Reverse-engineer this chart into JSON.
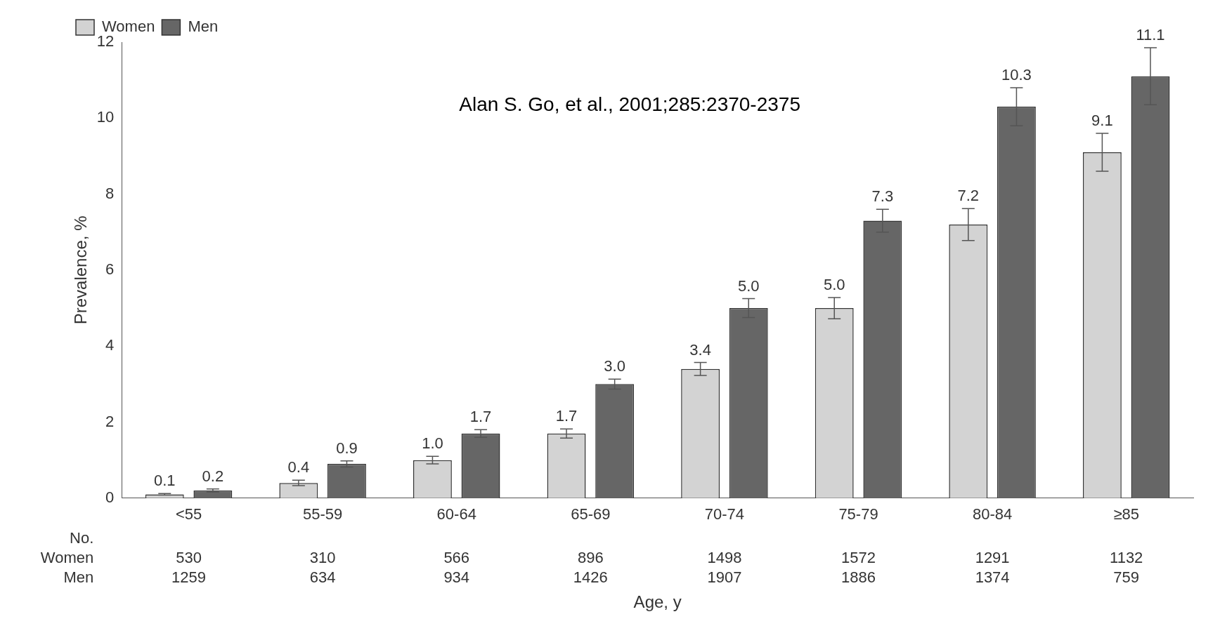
{
  "chart_data": {
    "type": "bar",
    "ylabel": "Prevalence, %",
    "xlabel": "Age, y",
    "categories": [
      "<55",
      "55-59",
      "60-64",
      "65-69",
      "70-74",
      "75-79",
      "80-84",
      "≥85"
    ],
    "series": [
      {
        "name": "Women",
        "color": "#d3d3d3",
        "values": [
          0.1,
          0.4,
          1.0,
          1.7,
          3.4,
          5.0,
          7.2,
          9.1
        ],
        "value_labels": [
          "0.1",
          "0.4",
          "1.0",
          "1.7",
          "3.4",
          "5.0",
          "7.2",
          "9.1"
        ],
        "errors": [
          0.02,
          0.07,
          0.1,
          0.12,
          0.17,
          0.28,
          0.42,
          0.5
        ]
      },
      {
        "name": "Men",
        "color": "#666666",
        "values": [
          0.2,
          0.9,
          1.7,
          3.0,
          5.0,
          7.3,
          10.3,
          11.1
        ],
        "value_labels": [
          "0.2",
          "0.9",
          "1.7",
          "3.0",
          "5.0",
          "7.3",
          "10.3",
          "11.1"
        ],
        "errors": [
          0.04,
          0.08,
          0.1,
          0.13,
          0.25,
          0.3,
          0.5,
          0.75
        ]
      }
    ],
    "ylim": [
      0,
      12
    ],
    "yticks": [
      0,
      2,
      4,
      6,
      8,
      10,
      12
    ],
    "grid": false,
    "legend": "top left",
    "annotations": [
      "Alan S. Go, et al., 2001;285:2370-2375",
      "No.",
      "Women",
      "Men",
      "530",
      "310",
      "566",
      "896",
      "1498",
      "1572",
      "1291",
      "1132",
      "1259",
      "634",
      "934",
      "1426",
      "1907",
      "1886",
      "1374",
      "759"
    ]
  }
}
